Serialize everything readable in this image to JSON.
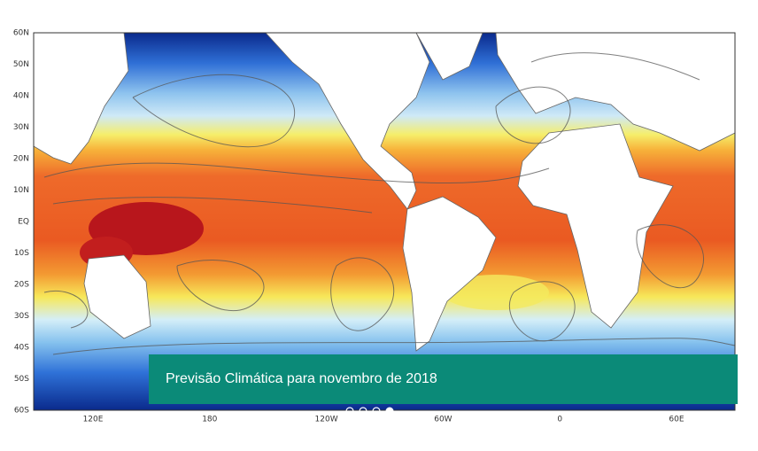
{
  "map": {
    "lat_labels": [
      "60N",
      "50N",
      "40N",
      "30N",
      "20N",
      "10N",
      "EQ",
      "10S",
      "20S",
      "30S",
      "40S",
      "50S",
      "60S"
    ],
    "lon_labels": [
      "120E",
      "180",
      "120W",
      "60W",
      "0",
      "60E"
    ]
  },
  "caption": "Previsão Climática para novembro de 2018"
}
